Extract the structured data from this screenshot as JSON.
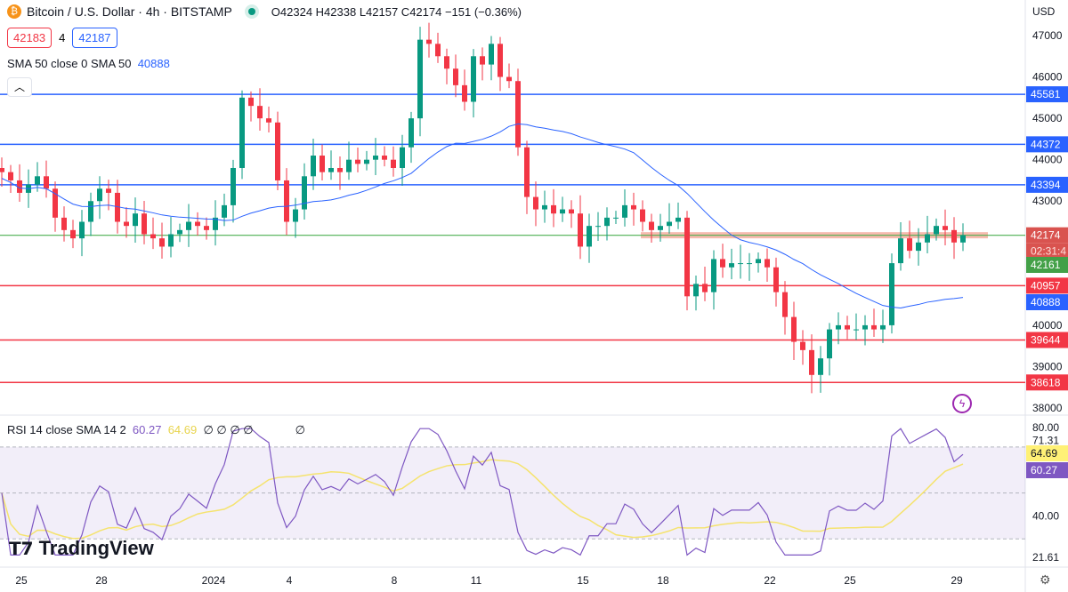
{
  "header": {
    "symbol_icon": "bitcoin-icon",
    "title": "Bitcoin / U.S. Dollar · 4h · BITSTAMP",
    "status_color": "#089981",
    "ohlc": "O42324 H42338 L42157 C42174 −151 (−0.36%)"
  },
  "trade": {
    "sell": "42183",
    "spread": "4",
    "buy": "42187"
  },
  "sma_legend": {
    "label": "SMA 50 close 0 SMA 50",
    "value": "40888"
  },
  "rsi_legend": {
    "label": "RSI 14 close SMA 14 2",
    "rsi": "60.27",
    "sma": "64.69",
    "extras": "∅ ∅ ∅ ∅",
    "extra2": "∅"
  },
  "logo": "TradingView",
  "axis_currency": "USD",
  "colors": {
    "up": "#089981",
    "down": "#f23645",
    "blue_level": "#2962ff",
    "red_level": "#f23645",
    "green_level": "#4caf50",
    "sma": "#2962ff",
    "rsi": "#7e57c2",
    "rsi_sma": "#f5e36e",
    "zone": "#f5a99a"
  },
  "chart_data": {
    "type": "candlestick",
    "x_ticks": [
      "25",
      "28",
      "2024",
      "4",
      "8",
      "11",
      "15",
      "18",
      "22",
      "25",
      "29"
    ],
    "y_ticks": [
      47000,
      46000,
      45000,
      44000,
      43000,
      40000,
      39000,
      38000
    ],
    "ylim": [
      38000,
      47000
    ],
    "closes": [
      43700,
      43500,
      43200,
      43400,
      43600,
      43300,
      42600,
      42300,
      42100,
      42500,
      43000,
      43300,
      43200,
      42500,
      42400,
      42700,
      42200,
      42100,
      41900,
      42200,
      42300,
      42500,
      42400,
      42300,
      42600,
      42900,
      43800,
      45500,
      45300,
      45000,
      44900,
      43500,
      42500,
      42800,
      43600,
      44100,
      43700,
      43800,
      43700,
      44000,
      43900,
      44000,
      44100,
      44000,
      43800,
      44300,
      45000,
      46900,
      46800,
      46500,
      46200,
      45800,
      45400,
      46500,
      46300,
      46800,
      46000,
      45900,
      44300,
      43100,
      42800,
      42900,
      42700,
      42800,
      42700,
      41900,
      42400,
      42400,
      42600,
      42600,
      42900,
      42800,
      42500,
      42300,
      42400,
      42500,
      42600,
      40700,
      41000,
      40800,
      41600,
      41400,
      41500,
      41500,
      41500,
      41600,
      41400,
      40800,
      40200,
      39600,
      39400,
      38800,
      39200,
      39900,
      40000,
      39900,
      39900,
      40000,
      39900,
      40000,
      41500,
      42100,
      41800,
      42000,
      42200,
      42400,
      42300,
      42000,
      42174
    ],
    "levels": [
      {
        "value": "45581",
        "type": "resistance"
      },
      {
        "value": "44372",
        "type": "resistance"
      },
      {
        "value": "43394",
        "type": "resistance"
      },
      {
        "value": "40957",
        "type": "support"
      },
      {
        "value": "39644",
        "type": "support"
      },
      {
        "value": "38618",
        "type": "support"
      }
    ],
    "last_price": "42174",
    "countdown": "02:31:4",
    "prev_close": "42161",
    "sma_value": "40888",
    "zone": [
      42100,
      42250
    ],
    "rsi": {
      "ylim": [
        21.61,
        80
      ],
      "y_ticks": [
        "80.00",
        "71.31",
        "40.00",
        "21.61"
      ],
      "bands": [
        70,
        50,
        30
      ],
      "last": "60.27",
      "sma_last": "64.69"
    }
  }
}
